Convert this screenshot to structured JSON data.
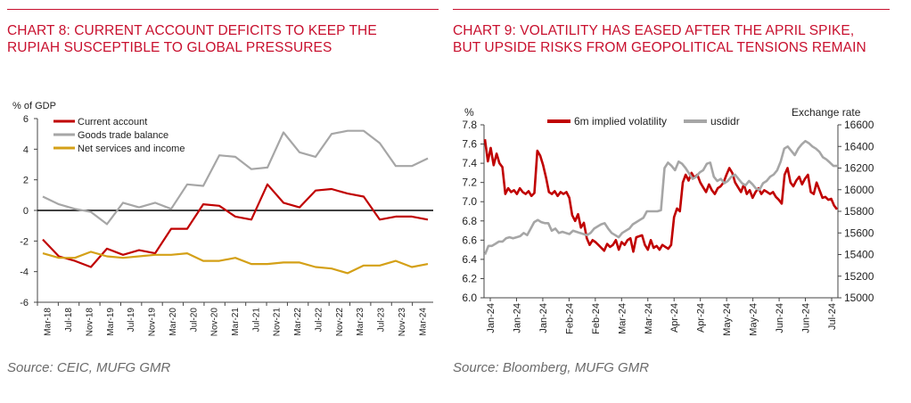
{
  "colors": {
    "red": "#c00000",
    "grey": "#a6a6a6",
    "gold": "#d4a017",
    "axis": "#444444",
    "title": "#c8102e"
  },
  "left_panel": {
    "title": "CHART 8: CURRENT ACCOUNT DEFICITS TO KEEP THE RUPIAH SUSCEPTIBLE TO GLOBAL PRESSURES",
    "source": "Source: CEIC, MUFG GMR"
  },
  "right_panel": {
    "title": "CHART 9: VOLATILITY HAS EASED AFTER THE APRIL SPIKE, BUT UPSIDE RISKS FROM GEOPOLITICAL TENSIONS REMAIN",
    "source": "Source: Bloomberg, MUFG GMR"
  },
  "chart_data": [
    {
      "type": "line",
      "ylabel": "% of GDP",
      "ylim": [
        -6,
        6
      ],
      "yticks": [
        -6,
        -4,
        -2,
        0,
        2,
        4,
        6
      ],
      "x": [
        "Mar-18",
        "Jun-18",
        "Sep-18",
        "Dec-18",
        "Mar-19",
        "Jun-19",
        "Sep-19",
        "Dec-19",
        "Mar-20",
        "Jun-20",
        "Sep-20",
        "Dec-20",
        "Mar-21",
        "Jun-21",
        "Sep-21",
        "Dec-21",
        "Mar-22",
        "Jun-22",
        "Sep-22",
        "Dec-22",
        "Mar-23",
        "Jun-23",
        "Sep-23",
        "Dec-23",
        "Mar-24"
      ],
      "xtick_labels": [
        "Mar-18",
        "Jul-18",
        "Nov-18",
        "Mar-19",
        "Jul-19",
        "Nov-19",
        "Mar-20",
        "Jul-20",
        "Nov-20",
        "Mar-21",
        "Jul-21",
        "Nov-21",
        "Mar-22",
        "Jul-22",
        "Nov-22",
        "Mar-23",
        "Jul-23",
        "Nov-23",
        "Mar-24"
      ],
      "legend_position": "top-left",
      "series": [
        {
          "name": "Current account",
          "color": "#c00000",
          "values": [
            -1.9,
            -3.0,
            -3.3,
            -3.7,
            -2.5,
            -2.9,
            -2.6,
            -2.8,
            -1.2,
            -1.2,
            0.4,
            0.3,
            -0.4,
            -0.6,
            1.7,
            0.5,
            0.2,
            1.3,
            1.4,
            1.1,
            0.9,
            -0.6,
            -0.4,
            -0.4,
            -0.6
          ]
        },
        {
          "name": "Goods trade balance",
          "color": "#a6a6a6",
          "values": [
            0.9,
            0.4,
            0.1,
            -0.1,
            -0.9,
            0.5,
            0.2,
            0.5,
            0.1,
            1.7,
            1.6,
            3.6,
            3.5,
            2.7,
            2.8,
            5.1,
            3.8,
            3.5,
            5.0,
            5.2,
            5.2,
            4.4,
            2.9,
            2.9,
            3.4
          ]
        },
        {
          "name": "Net services and income",
          "color": "#d4a017",
          "values": [
            -2.8,
            -3.1,
            -3.1,
            -2.7,
            -3.0,
            -3.1,
            -3.0,
            -2.9,
            -2.9,
            -2.8,
            -3.3,
            -3.3,
            -3.1,
            -3.5,
            -3.5,
            -3.4,
            -3.4,
            -3.7,
            -3.8,
            -4.1,
            -3.6,
            -3.6,
            -3.3,
            -3.7,
            -3.5
          ]
        }
      ]
    },
    {
      "type": "line",
      "ylabel": "%",
      "y2label": "Exchange rate",
      "ylim": [
        6.0,
        7.8
      ],
      "yticks": [
        "6.0",
        "6.2",
        "6.4",
        "6.6",
        "6.8",
        "7.0",
        "7.2",
        "7.4",
        "7.6",
        "7.8"
      ],
      "y2lim": [
        15000,
        16600
      ],
      "y2ticks": [
        15000,
        15200,
        15400,
        15600,
        15800,
        16000,
        16200,
        16400,
        16600
      ],
      "x_start": "2024-01-02",
      "x_end": "2024-07-28",
      "xtick_labels": [
        "Jan-24",
        "Jan-24",
        "Jan-24",
        "Feb-24",
        "Feb-24",
        "Mar-24",
        "Mar-24",
        "Apr-24",
        "Apr-24",
        "May-24",
        "May-24",
        "Jun-24",
        "Jun-24",
        "Jul-24"
      ],
      "legend_position": "top-center",
      "series": [
        {
          "name": "6m implied volatility",
          "axis": "left",
          "color": "#c00000",
          "values": [
            7.65,
            7.42,
            7.56,
            7.38,
            7.5,
            7.4,
            7.36,
            7.08,
            7.14,
            7.1,
            7.12,
            7.08,
            7.14,
            7.1,
            7.08,
            7.11,
            7.06,
            7.09,
            7.53,
            7.48,
            7.38,
            7.25,
            7.1,
            7.08,
            7.11,
            7.06,
            7.1,
            7.08,
            7.1,
            7.04,
            6.86,
            6.8,
            6.87,
            6.73,
            6.78,
            6.62,
            6.55,
            6.6,
            6.58,
            6.55,
            6.52,
            6.49,
            6.56,
            6.53,
            6.55,
            6.6,
            6.5,
            6.58,
            6.55,
            6.6,
            6.62,
            6.48,
            6.63,
            6.64,
            6.65,
            6.55,
            6.5,
            6.6,
            6.52,
            6.54,
            6.5,
            6.55,
            6.53,
            6.51,
            6.55,
            6.84,
            6.93,
            6.9,
            7.2,
            7.28,
            7.22,
            7.3,
            7.25,
            7.28,
            7.2,
            7.15,
            7.1,
            7.18,
            7.12,
            7.08,
            7.14,
            7.16,
            7.2,
            7.28,
            7.35,
            7.3,
            7.2,
            7.15,
            7.1,
            7.18,
            7.08,
            7.12,
            7.04,
            7.1,
            7.14,
            7.08,
            7.12,
            7.1,
            7.08,
            7.1,
            7.05,
            7.02,
            6.98,
            7.28,
            7.35,
            7.2,
            7.16,
            7.22,
            7.26,
            7.18,
            7.24,
            7.28,
            7.1,
            7.08,
            7.2,
            7.12,
            7.04,
            7.05,
            7.02,
            7.03,
            6.96,
            6.92
          ]
        },
        {
          "name": "usdidr",
          "axis": "right",
          "color": "#a6a6a6",
          "values": [
            15400,
            15480,
            15480,
            15500,
            15520,
            15520,
            15550,
            15560,
            15550,
            15560,
            15570,
            15600,
            15580,
            15640,
            15700,
            15720,
            15700,
            15690,
            15690,
            15620,
            15640,
            15600,
            15610,
            15600,
            15590,
            15620,
            15610,
            15600,
            15590,
            15580,
            15600,
            15640,
            15660,
            15680,
            15690,
            15640,
            15600,
            15580,
            15560,
            15600,
            15620,
            15640,
            15680,
            15700,
            15720,
            15740,
            15800,
            15800,
            15800,
            15800,
            15810,
            16200,
            16250,
            16220,
            16180,
            16260,
            16240,
            16200,
            16150,
            16100,
            16120,
            16160,
            16180,
            16240,
            16250,
            16120,
            16080,
            16100,
            16060,
            16080,
            16120,
            16140,
            16100,
            16060,
            16040,
            16080,
            16050,
            16010,
            16000,
            16060,
            16080,
            16120,
            16140,
            16180,
            16260,
            16380,
            16400,
            16360,
            16320,
            16380,
            16420,
            16450,
            16430,
            16400,
            16380,
            16350,
            16300,
            16280,
            16250,
            16220,
            16220
          ]
        }
      ]
    }
  ]
}
